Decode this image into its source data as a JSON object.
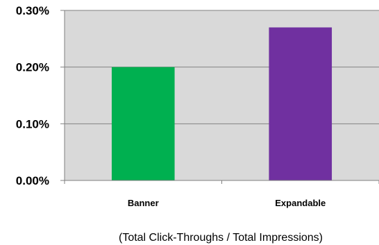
{
  "chart_data": {
    "type": "bar",
    "categories": [
      "Banner",
      "Expandable"
    ],
    "values": [
      0.2,
      0.27
    ],
    "value_unit": "%",
    "ylim": [
      0,
      0.3
    ],
    "yticks": [
      0.0,
      0.1,
      0.2,
      0.3
    ],
    "ytick_labels": [
      "0.00%",
      "0.10%",
      "0.20%",
      "0.30%"
    ],
    "bar_colors": [
      "#00b050",
      "#7030a0"
    ],
    "plot_background": "#d9d9d9",
    "grid": true,
    "note": "(Total Click-Throughs / Total Impressions)"
  }
}
